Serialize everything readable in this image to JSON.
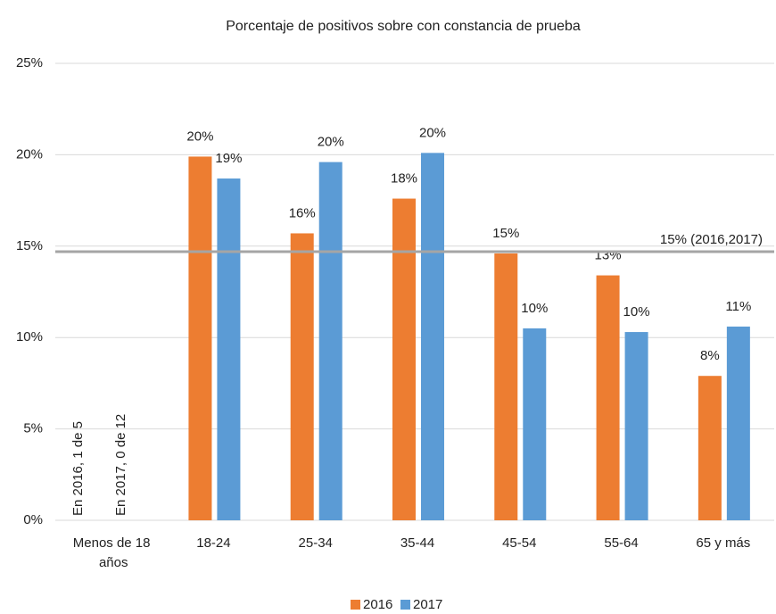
{
  "chart_data": {
    "type": "bar",
    "title": "Porcentaje de positivos sobre con constancia de prueba",
    "categories": [
      "Menos de 18 años",
      "18-24",
      "25-34",
      "35-44",
      "45-54",
      "55-64",
      "65 y más"
    ],
    "series": [
      {
        "name": "2016",
        "color": "#ed7d31",
        "values": [
          null,
          19.9,
          15.7,
          17.6,
          14.6,
          13.4,
          7.9
        ],
        "value_labels": [
          null,
          "20%",
          "16%",
          "18%",
          "15%",
          "13%",
          "8%"
        ]
      },
      {
        "name": "2017",
        "color": "#5b9bd5",
        "values": [
          null,
          18.7,
          19.6,
          20.1,
          10.5,
          10.3,
          10.6
        ],
        "value_labels": [
          null,
          "19%",
          "20%",
          "20%",
          "10%",
          "10%",
          "11%"
        ]
      }
    ],
    "ylim": [
      0,
      25
    ],
    "yticks": [
      {
        "value": 0,
        "label": "0%"
      },
      {
        "value": 5,
        "label": "5%"
      },
      {
        "value": 10,
        "label": "10%"
      },
      {
        "value": 15,
        "label": "15%"
      },
      {
        "value": 20,
        "label": "20%"
      },
      {
        "value": 25,
        "label": "25%"
      }
    ],
    "grid": true,
    "reference_line": {
      "value": 14.7,
      "label": "15% (2016,2017)",
      "color": "#a5a5a5"
    },
    "annotations": [
      "En 2016, 1 de 5",
      "En 2017, 0 de 12"
    ],
    "legend": "bottom"
  }
}
